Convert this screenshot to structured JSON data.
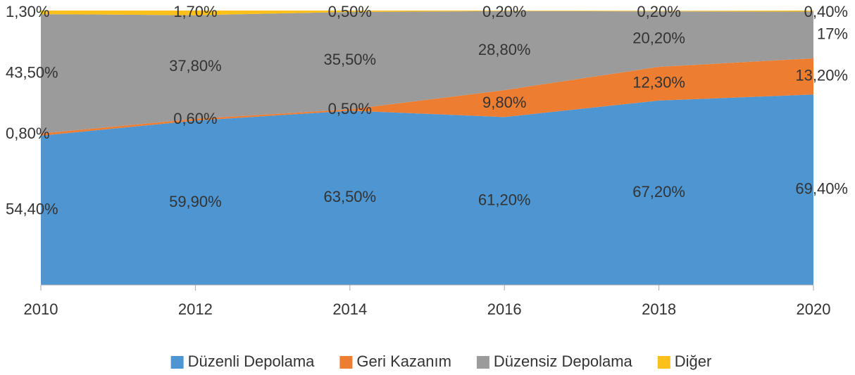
{
  "chart_data": {
    "type": "stacked_area",
    "categories": [
      "2010",
      "2012",
      "2014",
      "2016",
      "2018",
      "2020"
    ],
    "ylim": [
      0,
      100
    ],
    "legend": "bottom",
    "series": [
      {
        "name": "Düzenli Depolama",
        "color": "#4e96d2",
        "values": [
          54.4,
          59.9,
          63.5,
          61.2,
          67.2,
          69.4
        ],
        "value_labels": [
          "54,40%",
          "59,90%",
          "63,50%",
          "61,20%",
          "67,20%",
          "69,40%"
        ]
      },
      {
        "name": "Geri Kazanım",
        "color": "#ed7d31",
        "values": [
          0.8,
          0.6,
          0.5,
          9.8,
          12.3,
          13.2
        ],
        "value_labels": [
          "0,80%",
          "0,60%",
          "0,50%",
          "9,80%",
          "12,30%",
          "13,20%"
        ]
      },
      {
        "name": "Düzensiz Depolama",
        "color": "#9b9b9b",
        "values": [
          43.5,
          37.8,
          35.5,
          28.8,
          20.2,
          17
        ],
        "value_labels": [
          "43,50%",
          "37,80%",
          "35,50%",
          "28,80%",
          "20,20%",
          "17%"
        ]
      },
      {
        "name": "Diğer",
        "color": "#fcc01a",
        "values": [
          1.3,
          1.7,
          0.5,
          0.2,
          0.2,
          0.4
        ],
        "value_labels": [
          "1,30%",
          "1,70%",
          "0,50%",
          "0,20%",
          "0,20%",
          "0,40%"
        ]
      }
    ]
  }
}
